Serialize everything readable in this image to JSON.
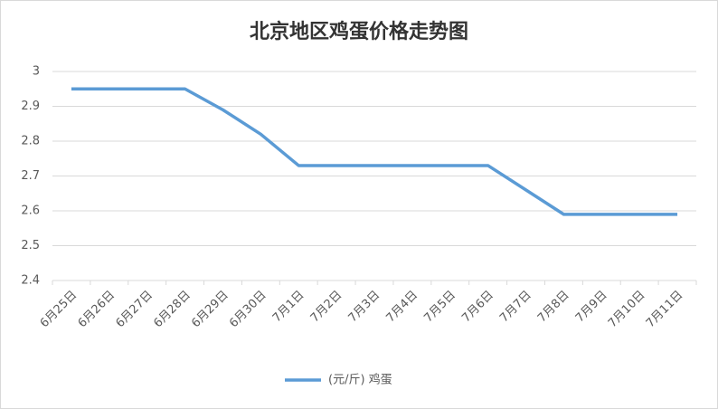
{
  "chart_data": {
    "type": "line",
    "title": "北京地区鸡蛋价格走势图",
    "categories": [
      "6月25日",
      "6月26日",
      "6月27日",
      "6月28日",
      "6月29日",
      "6月30日",
      "7月1日",
      "7月2日",
      "7月3日",
      "7月4日",
      "7月5日",
      "7月6日",
      "7月7日",
      "7月8日",
      "7月9日",
      "7月10日",
      "7月11日"
    ],
    "series": [
      {
        "name": "(元/斤) 鸡蛋",
        "color": "#5b9bd5",
        "values": [
          2.95,
          2.95,
          2.95,
          2.95,
          2.89,
          2.82,
          2.73,
          2.73,
          2.73,
          2.73,
          2.73,
          2.73,
          2.66,
          2.59,
          2.59,
          2.59,
          2.59
        ]
      }
    ],
    "ylim": [
      2.4,
      3
    ],
    "yticks": [
      2.4,
      2.5,
      2.6,
      2.7,
      2.8,
      2.9,
      3
    ],
    "grid": true,
    "legend": "bottom"
  }
}
